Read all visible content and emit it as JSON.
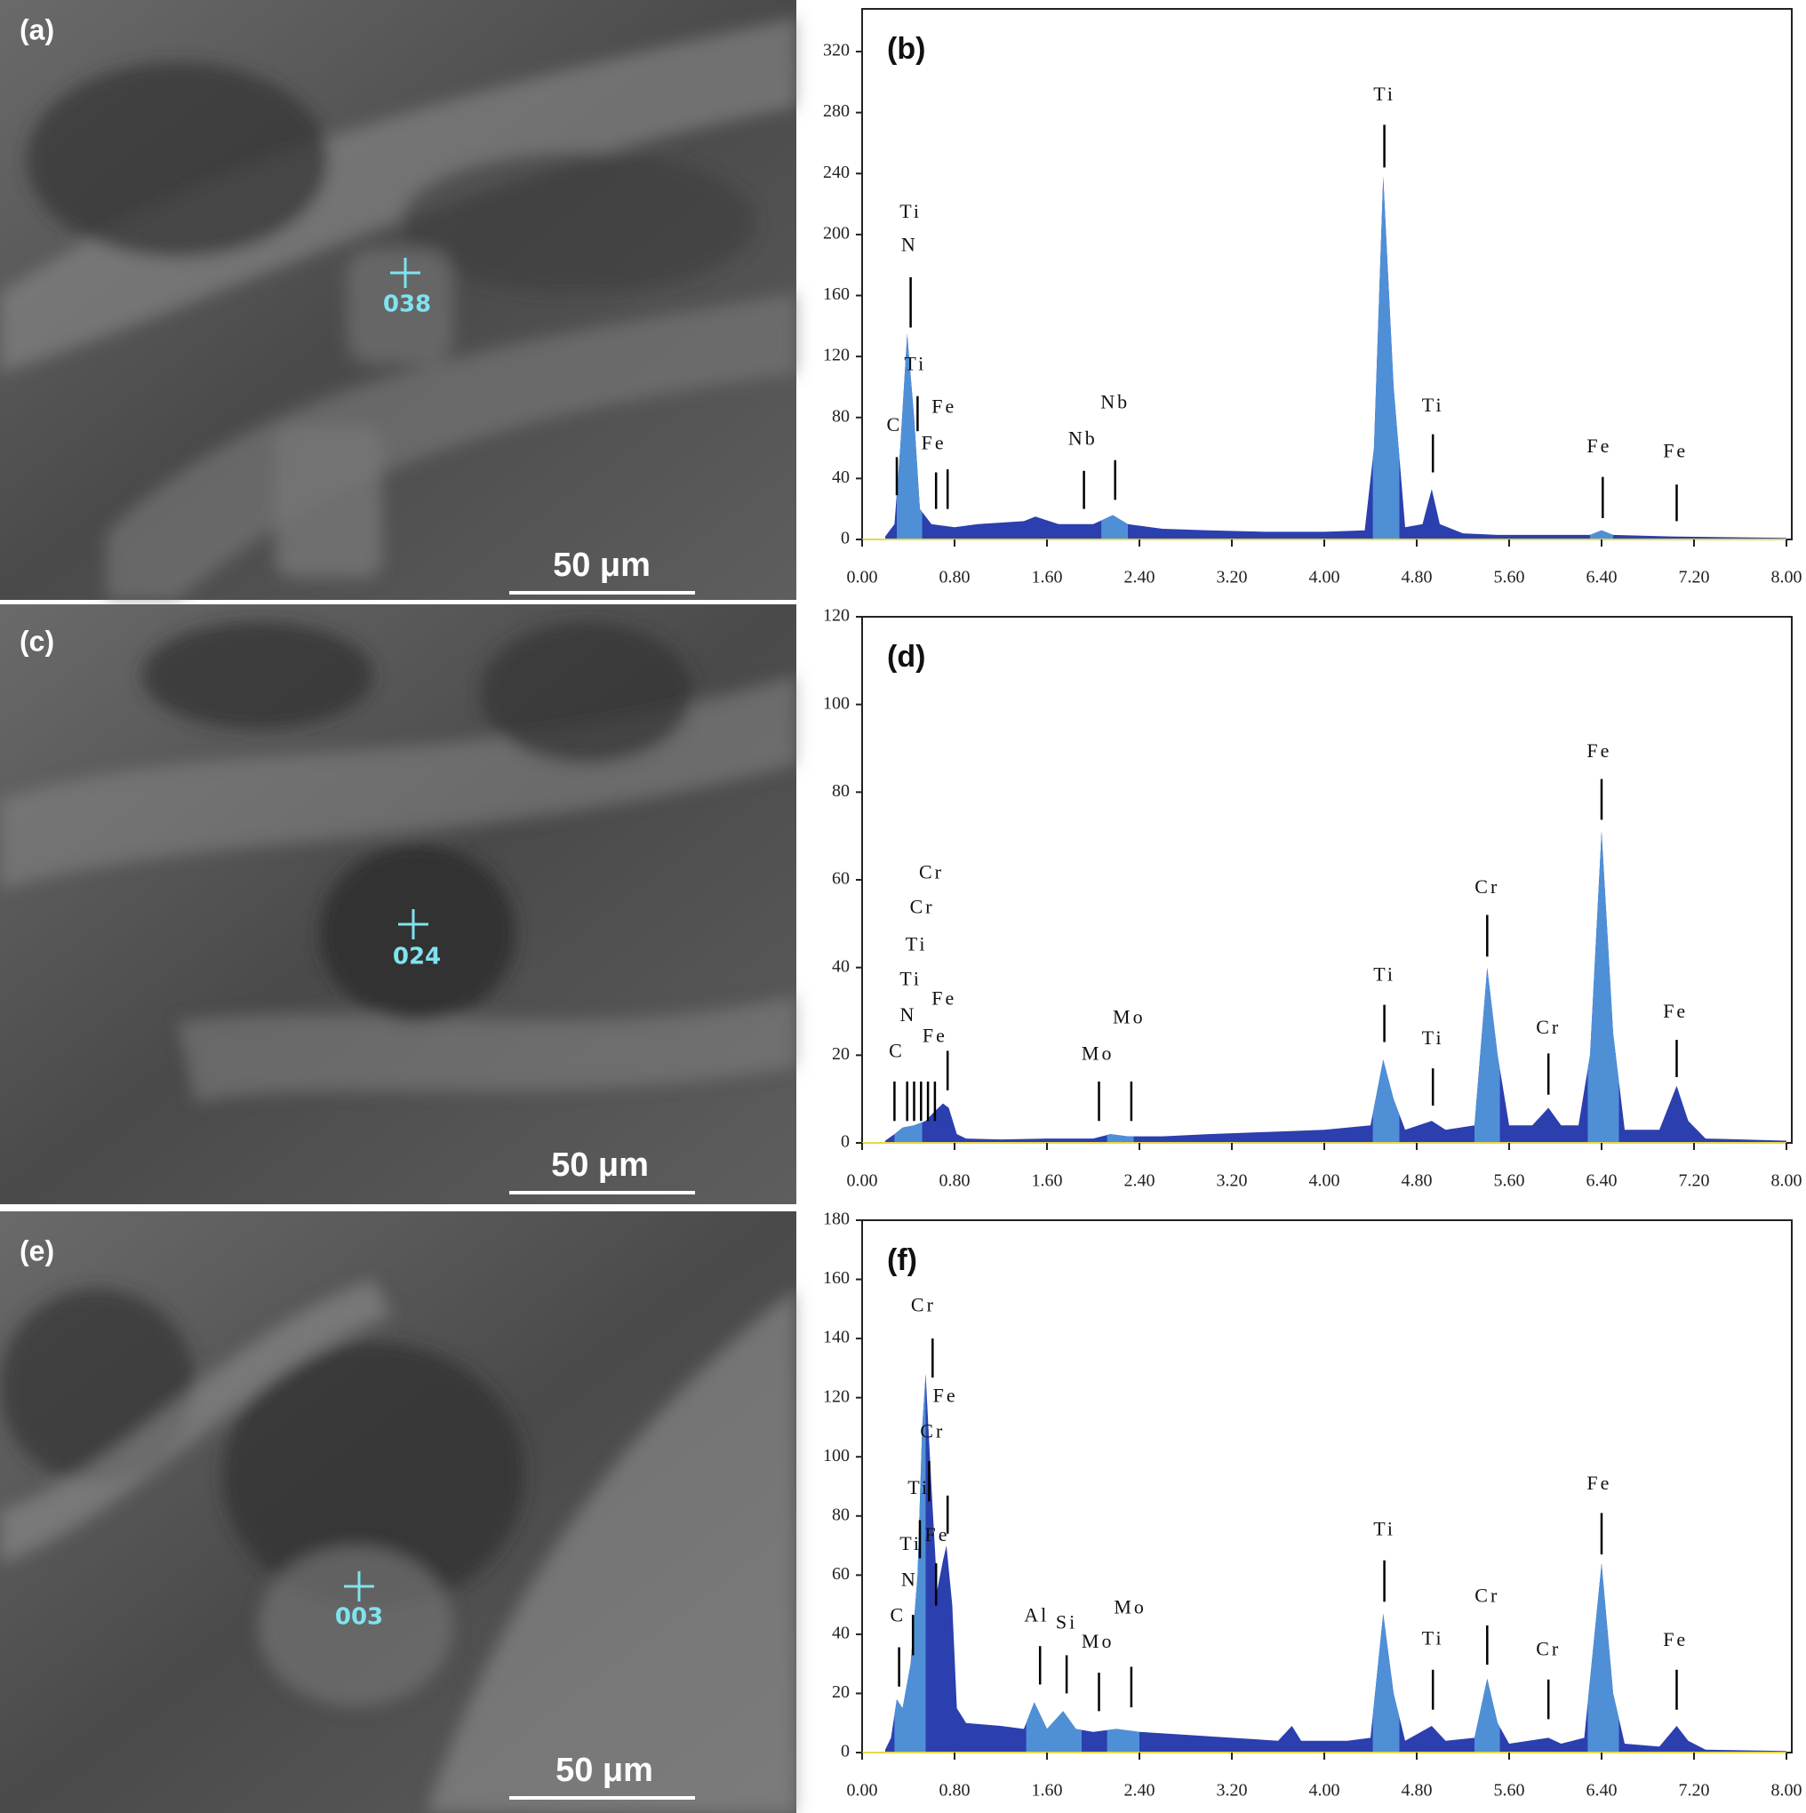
{
  "images": [
    {
      "label": "(a)",
      "spot": "038",
      "scale_bar": "50 μm"
    },
    {
      "label": "(c)",
      "spot": "024",
      "scale_bar": "50 μm"
    },
    {
      "label": "(e)",
      "spot": "003",
      "scale_bar": "50 μm"
    }
  ],
  "chart_data": [
    {
      "type": "area",
      "title": "(b)",
      "color": "#2b3fae",
      "region_color": "#4f8fd6",
      "xlim": [
        0,
        8
      ],
      "ylim": [
        0,
        348
      ],
      "xticks": [
        {
          "value": 0,
          "label": "0.00"
        },
        {
          "value": 0.8,
          "label": "0.80"
        },
        {
          "value": 1.6,
          "label": "1.60"
        },
        {
          "value": 2.4,
          "label": "2.40"
        },
        {
          "value": 3.2,
          "label": "3.20"
        },
        {
          "value": 4,
          "label": "4.00"
        },
        {
          "value": 4.8,
          "label": "4.80"
        },
        {
          "value": 5.6,
          "label": "5.60"
        },
        {
          "value": 6.4,
          "label": "6.40"
        },
        {
          "value": 7.2,
          "label": "7.20"
        },
        {
          "value": 8,
          "label": "8.00"
        }
      ],
      "yticks": [
        0,
        40,
        80,
        120,
        160,
        200,
        240,
        280,
        320
      ],
      "x": [
        0.2,
        0.28,
        0.33,
        0.39,
        0.45,
        0.5,
        0.6,
        0.8,
        1.0,
        1.4,
        1.5,
        1.7,
        2.0,
        2.17,
        2.3,
        2.6,
        3.0,
        3.5,
        4.0,
        4.35,
        4.43,
        4.51,
        4.6,
        4.7,
        4.85,
        4.93,
        5.0,
        5.2,
        5.5,
        6.0,
        6.3,
        6.4,
        6.5,
        7.0,
        8.0
      ],
      "values": [
        2,
        10,
        60,
        135,
        80,
        20,
        10,
        8,
        10,
        12,
        15,
        10,
        10,
        16,
        10,
        7,
        6,
        5,
        5,
        6,
        60,
        238,
        100,
        8,
        10,
        33,
        10,
        4,
        3,
        3,
        3,
        6,
        3,
        2,
        1
      ],
      "regions": [
        [
          0.3,
          0.52
        ],
        [
          2.07,
          2.3
        ],
        [
          4.42,
          4.65
        ],
        [
          6.3,
          6.5
        ]
      ],
      "markers": [
        {
          "x": 0.3,
          "y": [
            29,
            54
          ]
        },
        {
          "x": 0.42,
          "y": [
            139,
            172
          ]
        },
        {
          "x": 0.48,
          "y": [
            71,
            94
          ]
        },
        {
          "x": 0.64,
          "y": [
            20,
            44
          ]
        },
        {
          "x": 0.74,
          "y": [
            20,
            46
          ]
        },
        {
          "x": 1.92,
          "y": [
            20,
            45
          ]
        },
        {
          "x": 2.19,
          "y": [
            26,
            52
          ]
        },
        {
          "x": 4.52,
          "y": [
            244,
            272
          ]
        },
        {
          "x": 4.94,
          "y": [
            44,
            69
          ]
        },
        {
          "x": 6.41,
          "y": [
            14,
            41
          ]
        },
        {
          "x": 7.05,
          "y": [
            12,
            36
          ]
        }
      ],
      "annotations": [
        {
          "text": "C",
          "x": 0.28,
          "y": 74
        },
        {
          "text": "Ti",
          "x": 0.42,
          "y": 214
        },
        {
          "text": "N",
          "x": 0.41,
          "y": 192
        },
        {
          "text": "Ti",
          "x": 0.46,
          "y": 114
        },
        {
          "text": "Fe",
          "x": 0.62,
          "y": 62
        },
        {
          "text": "Fe",
          "x": 0.71,
          "y": 86
        },
        {
          "text": "Nb",
          "x": 1.91,
          "y": 65
        },
        {
          "text": "Nb",
          "x": 2.19,
          "y": 89
        },
        {
          "text": "Ti",
          "x": 4.52,
          "y": 291
        },
        {
          "text": "Ti",
          "x": 4.94,
          "y": 87
        },
        {
          "text": "Fe",
          "x": 6.38,
          "y": 60
        },
        {
          "text": "Fe",
          "x": 7.04,
          "y": 57
        }
      ]
    },
    {
      "type": "area",
      "title": "(d)",
      "color": "#2b3fae",
      "region_color": "#4f8fd6",
      "xlim": [
        0,
        8
      ],
      "ylim": [
        0,
        120
      ],
      "xticks": [
        {
          "value": 0,
          "label": "0.00"
        },
        {
          "value": 0.8,
          "label": "0.80"
        },
        {
          "value": 1.6,
          "label": "1.60"
        },
        {
          "value": 2.4,
          "label": "2.40"
        },
        {
          "value": 3.2,
          "label": "3.20"
        },
        {
          "value": 4,
          "label": "4.00"
        },
        {
          "value": 4.8,
          "label": "4.80"
        },
        {
          "value": 5.6,
          "label": "5.60"
        },
        {
          "value": 6.4,
          "label": "6.40"
        },
        {
          "value": 7.2,
          "label": "7.20"
        },
        {
          "value": 8,
          "label": "8.00"
        }
      ],
      "yticks": [
        0,
        20,
        40,
        60,
        80,
        100,
        120
      ],
      "x": [
        0.2,
        0.28,
        0.35,
        0.45,
        0.55,
        0.62,
        0.7,
        0.75,
        0.82,
        0.9,
        1.2,
        1.6,
        2.0,
        2.15,
        2.3,
        2.6,
        3.0,
        3.5,
        4.0,
        4.4,
        4.51,
        4.6,
        4.7,
        4.93,
        5.05,
        5.3,
        5.41,
        5.5,
        5.6,
        5.8,
        5.94,
        6.05,
        6.2,
        6.3,
        6.4,
        6.5,
        6.6,
        6.9,
        7.05,
        7.15,
        7.3,
        8.0
      ],
      "values": [
        0.5,
        2,
        3.5,
        4,
        5,
        7,
        9,
        8,
        2,
        1,
        0.8,
        1,
        1,
        2,
        1.5,
        1.5,
        2,
        2.5,
        3,
        4,
        19,
        10,
        3,
        5,
        3,
        4,
        40,
        20,
        4,
        4,
        8,
        4,
        4,
        20,
        71,
        25,
        3,
        3,
        13,
        5,
        1,
        0.5
      ],
      "regions": [
        [
          0.28,
          0.52
        ],
        [
          2.12,
          2.35
        ],
        [
          4.42,
          4.65
        ],
        [
          5.3,
          5.52
        ],
        [
          6.28,
          6.55
        ]
      ],
      "markers": [
        {
          "x": 0.28,
          "y": [
            5,
            14
          ]
        },
        {
          "x": 0.39,
          "y": [
            5,
            14
          ]
        },
        {
          "x": 0.45,
          "y": [
            5,
            14
          ]
        },
        {
          "x": 0.51,
          "y": [
            5,
            14
          ]
        },
        {
          "x": 0.57,
          "y": [
            5,
            14
          ]
        },
        {
          "x": 0.63,
          "y": [
            5,
            14
          ]
        },
        {
          "x": 0.74,
          "y": [
            12,
            21
          ]
        },
        {
          "x": 2.05,
          "y": [
            5,
            14
          ]
        },
        {
          "x": 2.33,
          "y": [
            5,
            14
          ]
        },
        {
          "x": 4.52,
          "y": [
            23,
            31.5
          ]
        },
        {
          "x": 4.94,
          "y": [
            8.5,
            17
          ]
        },
        {
          "x": 5.41,
          "y": [
            42.5,
            52
          ]
        },
        {
          "x": 5.94,
          "y": [
            11,
            20.4
          ]
        },
        {
          "x": 6.4,
          "y": [
            73.7,
            83
          ]
        },
        {
          "x": 7.05,
          "y": [
            15,
            23.5
          ]
        }
      ],
      "annotations": [
        {
          "text": "Cr",
          "x": 0.6,
          "y": 61.3
        },
        {
          "text": "Cr",
          "x": 0.52,
          "y": 53.4
        },
        {
          "text": "Ti",
          "x": 0.47,
          "y": 44.9
        },
        {
          "text": "Ti",
          "x": 0.42,
          "y": 37
        },
        {
          "text": "N",
          "x": 0.4,
          "y": 28.8
        },
        {
          "text": "C",
          "x": 0.3,
          "y": 20.6
        },
        {
          "text": "Fe",
          "x": 0.71,
          "y": 32.5
        },
        {
          "text": "Fe",
          "x": 0.63,
          "y": 24
        },
        {
          "text": "Mo",
          "x": 2.04,
          "y": 20
        },
        {
          "text": "Mo",
          "x": 2.31,
          "y": 28.3
        },
        {
          "text": "Ti",
          "x": 4.52,
          "y": 38
        },
        {
          "text": "Ti",
          "x": 4.94,
          "y": 23.5
        },
        {
          "text": "Cr",
          "x": 5.41,
          "y": 58
        },
        {
          "text": "Cr",
          "x": 5.94,
          "y": 26
        },
        {
          "text": "Fe",
          "x": 6.38,
          "y": 89
        },
        {
          "text": "Fe",
          "x": 7.04,
          "y": 29.6
        }
      ]
    },
    {
      "type": "area",
      "title": "(f)",
      "color": "#2b3fae",
      "region_color": "#4f8fd6",
      "xlim": [
        0,
        8
      ],
      "ylim": [
        0,
        180
      ],
      "xticks": [
        {
          "value": 0,
          "label": "0.00"
        },
        {
          "value": 0.8,
          "label": "0.80"
        },
        {
          "value": 1.6,
          "label": "1.60"
        },
        {
          "value": 2.4,
          "label": "2.40"
        },
        {
          "value": 3.2,
          "label": "3.20"
        },
        {
          "value": 4,
          "label": "4.00"
        },
        {
          "value": 4.8,
          "label": "4.80"
        },
        {
          "value": 5.6,
          "label": "5.60"
        },
        {
          "value": 6.4,
          "label": "6.40"
        },
        {
          "value": 7.2,
          "label": "7.20"
        },
        {
          "value": 8,
          "label": "8.00"
        }
      ],
      "yticks": [
        0,
        20,
        40,
        60,
        80,
        100,
        120,
        140,
        160,
        180
      ],
      "x": [
        0.2,
        0.25,
        0.3,
        0.35,
        0.42,
        0.48,
        0.52,
        0.55,
        0.6,
        0.65,
        0.7,
        0.73,
        0.78,
        0.82,
        0.9,
        1.2,
        1.4,
        1.49,
        1.6,
        1.74,
        1.85,
        2.0,
        2.2,
        2.4,
        2.8,
        3.2,
        3.6,
        3.72,
        3.8,
        4.2,
        4.4,
        4.51,
        4.6,
        4.7,
        4.93,
        5.05,
        5.3,
        5.41,
        5.5,
        5.6,
        5.94,
        6.05,
        6.25,
        6.4,
        6.5,
        6.6,
        6.9,
        7.05,
        7.15,
        7.3,
        8.0
      ],
      "values": [
        1,
        5,
        18,
        15,
        30,
        60,
        110,
        128,
        90,
        55,
        65,
        70,
        50,
        15,
        10,
        9,
        8,
        17,
        8,
        14,
        8,
        7,
        8,
        7,
        6,
        5,
        4,
        9,
        4,
        4,
        5,
        47,
        20,
        4,
        9,
        4,
        5,
        25,
        10,
        3,
        5,
        3,
        5,
        64,
        20,
        3,
        2,
        9,
        4,
        1,
        0.5
      ],
      "regions": [
        [
          0.28,
          0.55
        ],
        [
          1.42,
          1.9
        ],
        [
          2.12,
          2.4
        ],
        [
          4.42,
          4.65
        ],
        [
          5.3,
          5.52
        ],
        [
          6.28,
          6.55
        ]
      ],
      "markers": [
        {
          "x": 0.32,
          "y": [
            22.3,
            35.6
          ]
        },
        {
          "x": 0.44,
          "y": [
            32.9,
            46.6
          ]
        },
        {
          "x": 0.5,
          "y": [
            65.7,
            78.6
          ]
        },
        {
          "x": 0.58,
          "y": [
            84.9,
            98.6
          ]
        },
        {
          "x": 0.61,
          "y": [
            126.8,
            140
          ]
        },
        {
          "x": 0.64,
          "y": [
            49.7,
            64
          ]
        },
        {
          "x": 0.74,
          "y": [
            74,
            86.9
          ]
        },
        {
          "x": 1.54,
          "y": [
            23,
            36
          ]
        },
        {
          "x": 1.77,
          "y": [
            20,
            32.9
          ]
        },
        {
          "x": 2.05,
          "y": [
            14,
            27
          ]
        },
        {
          "x": 2.33,
          "y": [
            15.3,
            29
          ]
        },
        {
          "x": 4.52,
          "y": [
            51,
            65
          ]
        },
        {
          "x": 4.94,
          "y": [
            14.5,
            28
          ]
        },
        {
          "x": 5.41,
          "y": [
            29.7,
            43
          ]
        },
        {
          "x": 5.94,
          "y": [
            11.3,
            24.7
          ]
        },
        {
          "x": 6.4,
          "y": [
            67,
            81
          ]
        },
        {
          "x": 7.05,
          "y": [
            14.5,
            28
          ]
        }
      ],
      "annotations": [
        {
          "text": "C",
          "x": 0.31,
          "y": 45.8
        },
        {
          "text": "N",
          "x": 0.41,
          "y": 57.9
        },
        {
          "text": "Ti",
          "x": 0.42,
          "y": 70
        },
        {
          "text": "Ti",
          "x": 0.49,
          "y": 89
        },
        {
          "text": "Cr",
          "x": 0.61,
          "y": 108
        },
        {
          "text": "Fe",
          "x": 0.72,
          "y": 120
        },
        {
          "text": "Cr",
          "x": 0.53,
          "y": 150.7
        },
        {
          "text": "Fe",
          "x": 0.65,
          "y": 73
        },
        {
          "text": "Al",
          "x": 1.51,
          "y": 45.8
        },
        {
          "text": "Si",
          "x": 1.77,
          "y": 43.4
        },
        {
          "text": "Mo",
          "x": 2.04,
          "y": 37
        },
        {
          "text": "Mo",
          "x": 2.32,
          "y": 48.5
        },
        {
          "text": "Ti",
          "x": 4.52,
          "y": 75
        },
        {
          "text": "Ti",
          "x": 4.94,
          "y": 38
        },
        {
          "text": "Cr",
          "x": 5.41,
          "y": 52.4
        },
        {
          "text": "Cr",
          "x": 5.94,
          "y": 34.4
        },
        {
          "text": "Fe",
          "x": 6.38,
          "y": 90.4
        },
        {
          "text": "Fe",
          "x": 7.04,
          "y": 37.6
        }
      ]
    }
  ]
}
